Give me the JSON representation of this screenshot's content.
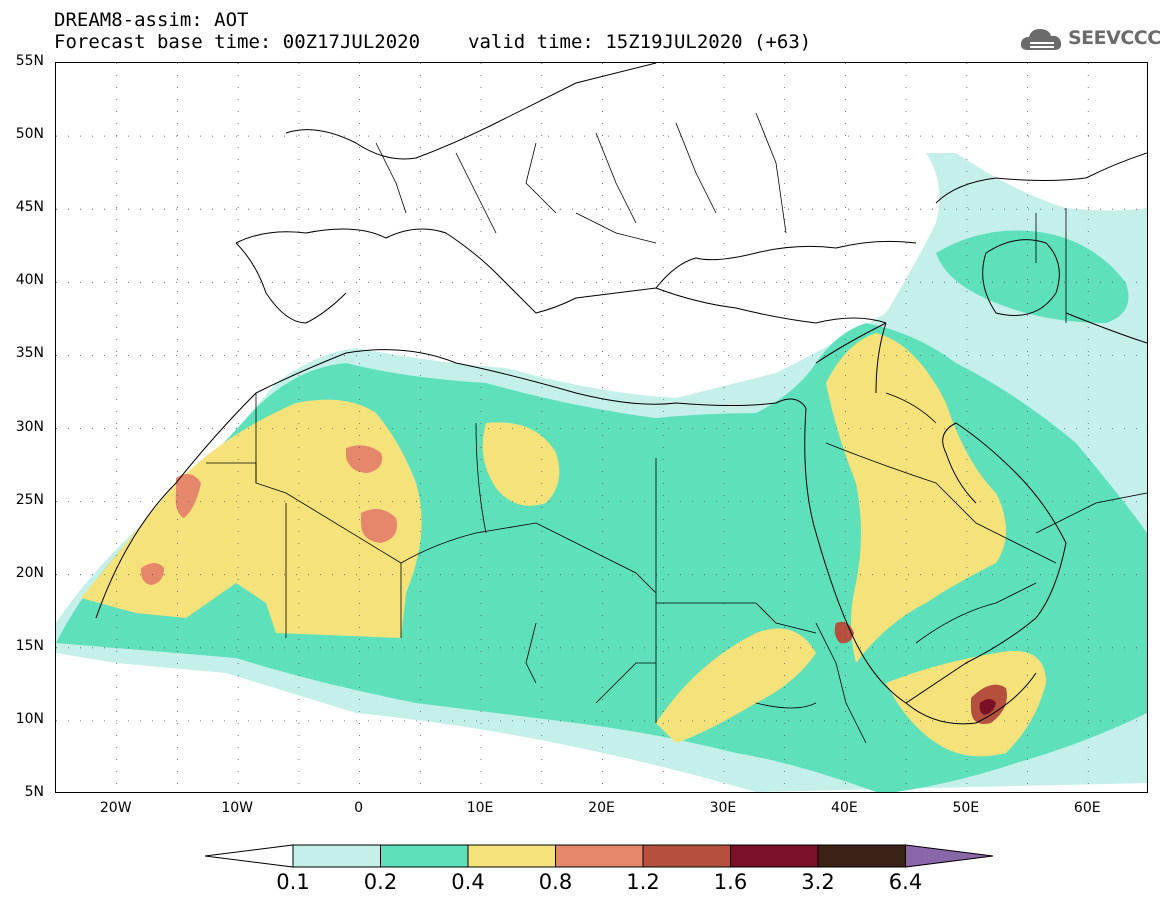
{
  "header": {
    "title": "DREAM8-assim: AOT",
    "base_time": "Forecast base time: 00Z17JUL2020",
    "valid_time": "valid time: 15Z19JUL2020 (+63)"
  },
  "logo": {
    "text": "SEEVCCC",
    "icon": "cloud-logo-icon",
    "color": "#6b6b6b"
  },
  "map": {
    "lat_labels": [
      "55N",
      "50N",
      "45N",
      "40N",
      "35N",
      "30N",
      "25N",
      "20N",
      "15N",
      "10N",
      "5N"
    ],
    "lon_labels": [
      "20W",
      "10W",
      "0",
      "10E",
      "20E",
      "30E",
      "40E",
      "50E",
      "60E"
    ],
    "lat_range": [
      5,
      55
    ],
    "lon_range": [
      -25,
      65
    ],
    "grid": true
  },
  "colorbar": {
    "labels": [
      "0.1",
      "0.2",
      "0.4",
      "0.8",
      "1.2",
      "1.6",
      "3.2",
      "6.4"
    ],
    "colors": [
      "#c5f0ea",
      "#5ee0bb",
      "#f5e27a",
      "#e5876a",
      "#b5503f",
      "#7a0f28",
      "#3a2216",
      "#8a67a8"
    ],
    "under_color": "#ffffff"
  }
}
